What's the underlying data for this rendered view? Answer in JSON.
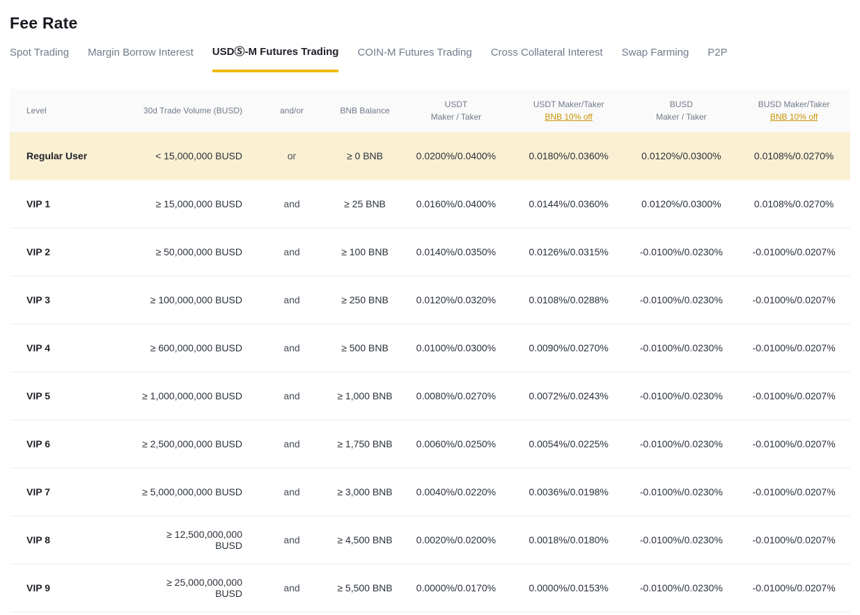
{
  "page": {
    "title": "Fee Rate"
  },
  "tabs": [
    {
      "label": "Spot Trading",
      "active": false
    },
    {
      "label": "Margin Borrow Interest",
      "active": false
    },
    {
      "label": "USDⓈ-M Futures Trading",
      "active": true
    },
    {
      "label": "COIN-M Futures Trading",
      "active": false
    },
    {
      "label": "Cross Collateral Interest",
      "active": false
    },
    {
      "label": "Swap Farming",
      "active": false
    },
    {
      "label": "P2P",
      "active": false
    }
  ],
  "table": {
    "headers": {
      "level": "Level",
      "volume": "30d Trade Volume (BUSD)",
      "andor": "and/or",
      "bnb": "BNB Balance",
      "usdt_line1": "USDT",
      "usdt_line2": "Maker / Taker",
      "usdt_bnb_line1": "USDT Maker/Taker",
      "usdt_bnb_line2": "BNB 10% off",
      "busd_line1": "BUSD",
      "busd_line2": "Maker / Taker",
      "busd_bnb_line1": "BUSD Maker/Taker",
      "busd_bnb_line2": "BNB 10% off"
    },
    "rows": [
      {
        "level": "Regular User",
        "volume": "< 15,000,000 BUSD",
        "andor": "or",
        "bnb": "≥ 0 BNB",
        "usdt": "0.0200%/0.0400%",
        "usdt_bnb": "0.0180%/0.0360%",
        "busd": "0.0120%/0.0300%",
        "busd_bnb": "0.0108%/0.0270%",
        "highlight": true
      },
      {
        "level": "VIP 1",
        "volume": "≥ 15,000,000 BUSD",
        "andor": "and",
        "bnb": "≥ 25 BNB",
        "usdt": "0.0160%/0.0400%",
        "usdt_bnb": "0.0144%/0.0360%",
        "busd": "0.0120%/0.0300%",
        "busd_bnb": "0.0108%/0.0270%",
        "highlight": false
      },
      {
        "level": "VIP 2",
        "volume": "≥ 50,000,000 BUSD",
        "andor": "and",
        "bnb": "≥ 100 BNB",
        "usdt": "0.0140%/0.0350%",
        "usdt_bnb": "0.0126%/0.0315%",
        "busd": "-0.0100%/0.0230%",
        "busd_bnb": "-0.0100%/0.0207%",
        "highlight": false
      },
      {
        "level": "VIP 3",
        "volume": "≥ 100,000,000 BUSD",
        "andor": "and",
        "bnb": "≥ 250 BNB",
        "usdt": "0.0120%/0.0320%",
        "usdt_bnb": "0.0108%/0.0288%",
        "busd": "-0.0100%/0.0230%",
        "busd_bnb": "-0.0100%/0.0207%",
        "highlight": false
      },
      {
        "level": "VIP 4",
        "volume": "≥ 600,000,000 BUSD",
        "andor": "and",
        "bnb": "≥ 500 BNB",
        "usdt": "0.0100%/0.0300%",
        "usdt_bnb": "0.0090%/0.0270%",
        "busd": "-0.0100%/0.0230%",
        "busd_bnb": "-0.0100%/0.0207%",
        "highlight": false
      },
      {
        "level": "VIP 5",
        "volume": "≥ 1,000,000,000 BUSD",
        "andor": "and",
        "bnb": "≥ 1,000 BNB",
        "usdt": "0.0080%/0.0270%",
        "usdt_bnb": "0.0072%/0.0243%",
        "busd": "-0.0100%/0.0230%",
        "busd_bnb": "-0.0100%/0.0207%",
        "highlight": false
      },
      {
        "level": "VIP 6",
        "volume": "≥ 2,500,000,000 BUSD",
        "andor": "and",
        "bnb": "≥ 1,750 BNB",
        "usdt": "0.0060%/0.0250%",
        "usdt_bnb": "0.0054%/0.0225%",
        "busd": "-0.0100%/0.0230%",
        "busd_bnb": "-0.0100%/0.0207%",
        "highlight": false
      },
      {
        "level": "VIP 7",
        "volume": "≥ 5,000,000,000 BUSD",
        "andor": "and",
        "bnb": "≥ 3,000 BNB",
        "usdt": "0.0040%/0.0220%",
        "usdt_bnb": "0.0036%/0.0198%",
        "busd": "-0.0100%/0.0230%",
        "busd_bnb": "-0.0100%/0.0207%",
        "highlight": false
      },
      {
        "level": "VIP 8",
        "volume": "≥ 12,500,000,000 BUSD",
        "andor": "and",
        "bnb": "≥ 4,500 BNB",
        "usdt": "0.0020%/0.0200%",
        "usdt_bnb": "0.0018%/0.0180%",
        "busd": "-0.0100%/0.0230%",
        "busd_bnb": "-0.0100%/0.0207%",
        "highlight": false
      },
      {
        "level": "VIP 9",
        "volume": "≥ 25,000,000,000 BUSD",
        "andor": "and",
        "bnb": "≥ 5,500 BNB",
        "usdt": "0.0000%/0.0170%",
        "usdt_bnb": "0.0000%/0.0153%",
        "busd": "-0.0100%/0.0230%",
        "busd_bnb": "-0.0100%/0.0207%",
        "highlight": false
      }
    ]
  },
  "colors": {
    "accent_yellow": "#f0b90b",
    "link_gold": "#c99400",
    "highlight_row_bg": "#faf0d3",
    "header_bg": "#fafafa",
    "tab_inactive": "#707a8a",
    "text_dark": "#1e2026",
    "row_separator": "#eaecef"
  }
}
